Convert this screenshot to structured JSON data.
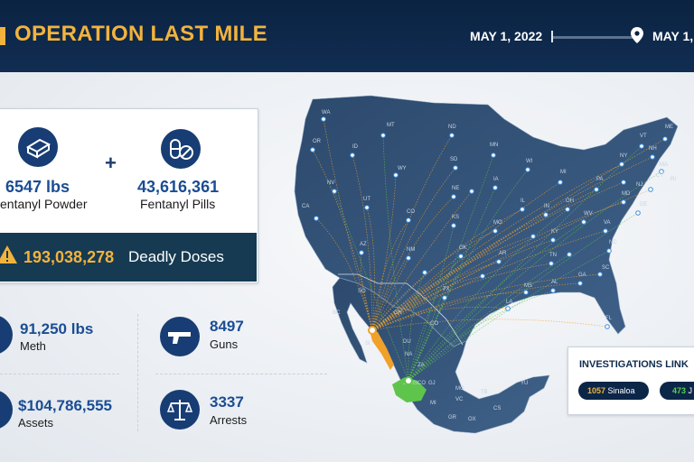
{
  "header": {
    "title": "OPERATION LAST MILE",
    "date_start": "MAY 1, 2022",
    "date_end": "MAY 1,"
  },
  "seizures": {
    "powder": {
      "value": "6547 lbs",
      "label": "entanyl Powder",
      "icon": "fentanyl-brick-icon"
    },
    "pills": {
      "value": "43,616,361",
      "label": "Fentanyl Pills",
      "icon": "pills-icon"
    },
    "plus": "+",
    "doses": {
      "value": "193,038,278",
      "label": "Deadly Doses",
      "icon": "warning-icon"
    }
  },
  "stats": [
    {
      "value": "91,250 lbs",
      "label": "Meth",
      "icon": "meth-icon"
    },
    {
      "value": "8497",
      "label": "Guns",
      "icon": "gun-icon"
    },
    {
      "value": "$104,786,555",
      "label": "Assets",
      "icon": "money-icon"
    },
    {
      "value": "3337",
      "label": "Arrests",
      "icon": "scales-icon"
    }
  ],
  "investigations": {
    "title": "INVESTIGATIONS LINK",
    "sinaloa_count": "1057",
    "sinaloa_label": "Sinaloa",
    "jalisco_count": "473",
    "jalisco_label": "J"
  },
  "map": {
    "state_labels": [
      "WA",
      "OR",
      "MT",
      "ID",
      "ND",
      "MN",
      "SD",
      "WY",
      "WI",
      "MI",
      "NV",
      "NE",
      "IA",
      "IL",
      "IN",
      "OH",
      "PA",
      "NY",
      "VT",
      "NH",
      "ME",
      "MA",
      "RI",
      "CA",
      "UT",
      "CO",
      "KS",
      "MO",
      "KY",
      "WV",
      "VA",
      "MD",
      "DE",
      "NJ",
      "CT",
      "AZ",
      "NM",
      "OK",
      "AR",
      "TN",
      "NC",
      "SC",
      "GA",
      "AL",
      "MS",
      "LA",
      "TX",
      "FL",
      "BC",
      "SO",
      "CH",
      "CO",
      "SI",
      "DU",
      "NA",
      "ZA",
      "JALISCO",
      "GJ",
      "MI",
      "VC",
      "TB",
      "CS",
      "OX",
      "GR",
      "MO",
      "YU"
    ],
    "colors": {
      "sinaloa": "#f0a12a",
      "jalisco": "#5fc44c",
      "land": "#3a5a80",
      "water": "#eef1f5"
    }
  }
}
